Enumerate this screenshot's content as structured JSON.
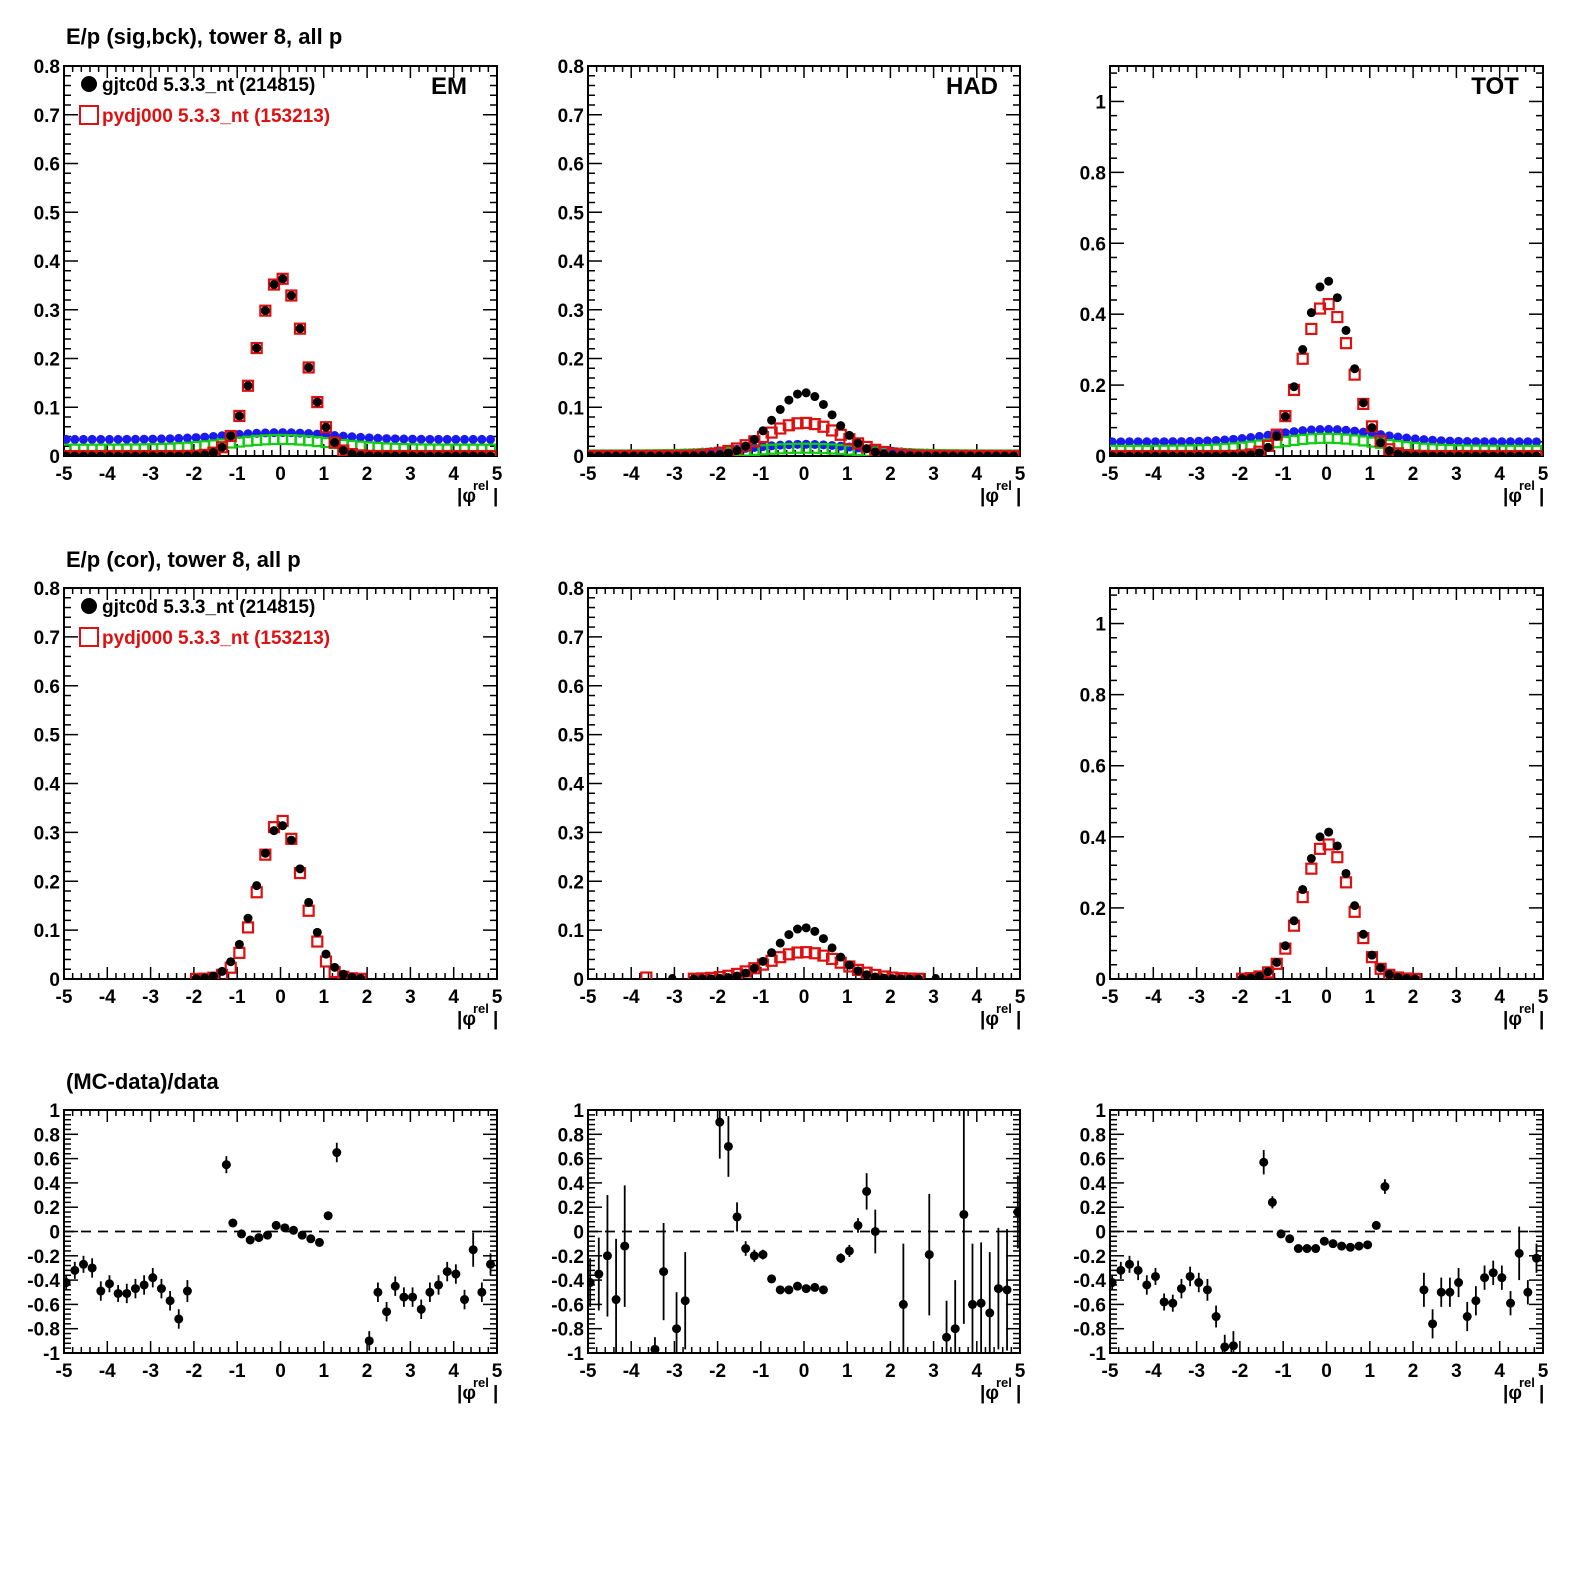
{
  "colors": {
    "data": "#000000",
    "mc": "#dd1111",
    "blue": "#1a1aee",
    "green": "#11cc11",
    "axis": "#000000"
  },
  "rows": [
    {
      "title": "E/p (sig,bck), tower 8, all p",
      "legend": {
        "data": "gjtc0d 5.3.3_nt (214815)",
        "mc": "pydj000 5.3.3_nt (153213)"
      }
    },
    {
      "title": "E/p (cor), tower 8, all p",
      "legend": {
        "data": "gjtc0d 5.3.3_nt (214815)",
        "mc": "pydj000 5.3.3_nt (153213)"
      }
    },
    {
      "title": "(MC-data)/data"
    }
  ],
  "xaxis": {
    "label_main": "|φ",
    "label_sup": "rel",
    "label_end": "|",
    "ticks": [
      "-5",
      "-4",
      "-3",
      "-2",
      "-1",
      "0",
      "1",
      "2",
      "3",
      "4",
      "5"
    ]
  },
  "chart_data": [
    {
      "type": "scatter",
      "row": 0,
      "col": 0,
      "panel_label": "EM",
      "xlim": [
        -5,
        5
      ],
      "ylim": [
        0,
        0.8
      ],
      "yticks": [
        "0",
        "0.1",
        "0.2",
        "0.3",
        "0.4",
        "0.5",
        "0.6",
        "0.7",
        "0.8"
      ],
      "profile": {
        "kind": "gauss",
        "data_peak": 0.365,
        "data_sigma": 0.55,
        "mc_peak": 0.365,
        "mc_sigma": 0.55,
        "bg_blue": 0.034,
        "bg_blue_bump": 0.014,
        "bg_green": 0.014,
        "bg_green_bump": 0.02,
        "bg_sigma": 1.2,
        "xmin": -5,
        "xmax": 5
      }
    },
    {
      "type": "scatter",
      "row": 0,
      "col": 1,
      "panel_label": "HAD",
      "xlim": [
        -5,
        5
      ],
      "ylim": [
        0,
        0.8
      ],
      "yticks": [
        "0",
        "0.1",
        "0.2",
        "0.3",
        "0.4",
        "0.5",
        "0.6",
        "0.7",
        "0.8"
      ],
      "profile": {
        "kind": "gauss",
        "data_peak": 0.13,
        "data_sigma": 0.7,
        "mc_peak": 0.068,
        "mc_sigma": 0.9,
        "bg_blue": 0.004,
        "bg_blue_bump": 0.02,
        "bg_green": 0.002,
        "bg_green_bump": 0.014,
        "bg_sigma": 1.3,
        "xmin": -5,
        "xmax": 5
      }
    },
    {
      "type": "scatter",
      "row": 0,
      "col": 2,
      "panel_label": "TOT",
      "xlim": [
        -5,
        5
      ],
      "ylim": [
        0,
        1.1
      ],
      "yticks": [
        "0",
        "0.2",
        "0.4",
        "0.6",
        "0.8",
        "1"
      ],
      "ytick_values": [
        0,
        0.2,
        0.4,
        0.6,
        0.8,
        1
      ],
      "profile": {
        "kind": "gauss",
        "data_peak": 0.495,
        "data_sigma": 0.55,
        "mc_peak": 0.43,
        "mc_sigma": 0.58,
        "bg_blue": 0.04,
        "bg_blue_bump": 0.035,
        "bg_green": 0.016,
        "bg_green_bump": 0.034,
        "bg_sigma": 1.2,
        "xmin": -5,
        "xmax": 5
      }
    },
    {
      "type": "scatter",
      "row": 1,
      "col": 0,
      "panel_label": "",
      "xlim": [
        -5,
        5
      ],
      "ylim": [
        0,
        0.8
      ],
      "yticks": [
        "0",
        "0.1",
        "0.2",
        "0.3",
        "0.4",
        "0.5",
        "0.6",
        "0.7",
        "0.8"
      ],
      "profile": {
        "kind": "gauss",
        "data_peak": 0.315,
        "data_sigma": 0.55,
        "mc_peak": 0.325,
        "mc_sigma": 0.5,
        "xmin": -1.95,
        "xmax": 1.95
      }
    },
    {
      "type": "scatter",
      "row": 1,
      "col": 1,
      "panel_label": "",
      "xlim": [
        -5,
        5
      ],
      "ylim": [
        0,
        0.8
      ],
      "yticks": [
        "0",
        "0.1",
        "0.2",
        "0.3",
        "0.4",
        "0.5",
        "0.6",
        "0.7",
        "0.8"
      ],
      "profile": {
        "kind": "gauss",
        "data_peak": 0.105,
        "data_sigma": 0.65,
        "mc_peak": 0.055,
        "mc_sigma": 0.85,
        "xmin": -2.55,
        "xmax": 2.75,
        "extra_mc": [
          -3.65
        ],
        "extra_data": [
          -3.05,
          3.05
        ]
      }
    },
    {
      "type": "scatter",
      "row": 1,
      "col": 2,
      "panel_label": "",
      "xlim": [
        -5,
        5
      ],
      "ylim": [
        0,
        1.1
      ],
      "yticks": [
        "0",
        "0.2",
        "0.4",
        "0.6",
        "0.8",
        "1"
      ],
      "ytick_values": [
        0,
        0.2,
        0.4,
        0.6,
        0.8,
        1
      ],
      "profile": {
        "kind": "gauss",
        "data_peak": 0.415,
        "data_sigma": 0.55,
        "mc_peak": 0.38,
        "mc_sigma": 0.55,
        "xmin": -1.95,
        "xmax": 2.05
      }
    },
    {
      "type": "scatter",
      "row": 2,
      "col": 0,
      "panel_label": "",
      "xlim": [
        -5,
        5
      ],
      "ylim": [
        -1,
        1
      ],
      "ref_line": 0,
      "yticks": [
        "-1",
        "-0.8",
        "-0.6",
        "-0.4",
        "-0.2",
        "0",
        "0.2",
        "0.4",
        "0.6",
        "0.8",
        "1"
      ],
      "points": [
        [
          -4.95,
          -0.42,
          0.06
        ],
        [
          -4.75,
          -0.32,
          0.07
        ],
        [
          -4.55,
          -0.27,
          0.07
        ],
        [
          -4.35,
          -0.3,
          0.08
        ],
        [
          -4.15,
          -0.49,
          0.08
        ],
        [
          -3.95,
          -0.43,
          0.07
        ],
        [
          -3.75,
          -0.51,
          0.07
        ],
        [
          -3.55,
          -0.51,
          0.08
        ],
        [
          -3.35,
          -0.47,
          0.08
        ],
        [
          -3.15,
          -0.44,
          0.08
        ],
        [
          -2.95,
          -0.38,
          0.08
        ],
        [
          -2.75,
          -0.47,
          0.08
        ],
        [
          -2.55,
          -0.57,
          0.08
        ],
        [
          -2.35,
          -0.72,
          0.08
        ],
        [
          -2.15,
          -0.49,
          0.09
        ],
        [
          -1.25,
          0.55,
          0.07
        ],
        [
          -1.1,
          0.07,
          0.02
        ],
        [
          -0.9,
          -0.02,
          0.02
        ],
        [
          -0.7,
          -0.07,
          0.02
        ],
        [
          -0.5,
          -0.05,
          0.02
        ],
        [
          -0.3,
          -0.03,
          0.02
        ],
        [
          -0.1,
          0.05,
          0.02
        ],
        [
          0.1,
          0.03,
          0.02
        ],
        [
          0.3,
          0.01,
          0.02
        ],
        [
          0.5,
          -0.03,
          0.02
        ],
        [
          0.7,
          -0.06,
          0.02
        ],
        [
          0.9,
          -0.09,
          0.02
        ],
        [
          1.1,
          0.13,
          0.02
        ],
        [
          1.3,
          0.65,
          0.08
        ],
        [
          2.05,
          -0.9,
          0.08
        ],
        [
          2.25,
          -0.5,
          0.08
        ],
        [
          2.45,
          -0.66,
          0.08
        ],
        [
          2.65,
          -0.45,
          0.08
        ],
        [
          2.85,
          -0.54,
          0.08
        ],
        [
          3.05,
          -0.54,
          0.08
        ],
        [
          3.25,
          -0.64,
          0.08
        ],
        [
          3.45,
          -0.5,
          0.08
        ],
        [
          3.65,
          -0.44,
          0.08
        ],
        [
          3.85,
          -0.33,
          0.08
        ],
        [
          4.05,
          -0.35,
          0.08
        ],
        [
          4.25,
          -0.56,
          0.08
        ],
        [
          4.45,
          -0.15,
          0.14
        ],
        [
          4.65,
          -0.5,
          0.08
        ],
        [
          4.85,
          -0.27,
          0.09
        ]
      ]
    },
    {
      "type": "scatter",
      "row": 2,
      "col": 1,
      "panel_label": "",
      "xlim": [
        -5,
        5
      ],
      "ylim": [
        -1,
        1
      ],
      "ref_line": 0,
      "yticks": [
        "-1",
        "-0.8",
        "-0.6",
        "-0.4",
        "-0.2",
        "0",
        "0.2",
        "0.4",
        "0.6",
        "0.8",
        "1"
      ],
      "points": [
        [
          -4.95,
          -0.42,
          0.2
        ],
        [
          -4.75,
          -0.35,
          0.3
        ],
        [
          -4.55,
          -0.2,
          0.5
        ],
        [
          -4.35,
          -0.56,
          0.5
        ],
        [
          -4.15,
          -0.12,
          0.5
        ],
        [
          -3.45,
          -0.97,
          0.1
        ],
        [
          -3.25,
          -0.33,
          0.4
        ],
        [
          -2.95,
          -0.8,
          0.3
        ],
        [
          -2.75,
          -0.57,
          0.4
        ],
        [
          -1.95,
          0.9,
          0.3
        ],
        [
          -1.75,
          0.7,
          0.25
        ],
        [
          -1.55,
          0.12,
          0.12
        ],
        [
          -1.35,
          -0.14,
          0.06
        ],
        [
          -1.15,
          -0.2,
          0.05
        ],
        [
          -0.95,
          -0.19,
          0.04
        ],
        [
          -0.75,
          -0.39,
          0.03
        ],
        [
          -0.55,
          -0.48,
          0.03
        ],
        [
          -0.35,
          -0.48,
          0.03
        ],
        [
          -0.15,
          -0.45,
          0.03
        ],
        [
          0.05,
          -0.47,
          0.03
        ],
        [
          0.25,
          -0.46,
          0.03
        ],
        [
          0.45,
          -0.48,
          0.03
        ],
        [
          0.85,
          -0.22,
          0.04
        ],
        [
          1.05,
          -0.16,
          0.05
        ],
        [
          1.25,
          0.05,
          0.06
        ],
        [
          1.45,
          0.33,
          0.15
        ],
        [
          1.65,
          0.0,
          0.18
        ],
        [
          2.3,
          -0.6,
          0.5
        ],
        [
          2.9,
          -0.19,
          0.5
        ],
        [
          3.3,
          -0.87,
          0.3
        ],
        [
          3.5,
          -0.8,
          0.4
        ],
        [
          3.7,
          0.14,
          0.9
        ],
        [
          3.9,
          -0.6,
          0.5
        ],
        [
          4.1,
          -0.59,
          0.5
        ],
        [
          4.3,
          -0.67,
          0.5
        ],
        [
          4.5,
          -0.47,
          0.5
        ],
        [
          4.7,
          -0.48,
          0.5
        ],
        [
          4.95,
          0.16,
          0.3
        ]
      ]
    },
    {
      "type": "scatter",
      "row": 2,
      "col": 2,
      "panel_label": "",
      "xlim": [
        -5,
        5
      ],
      "ylim": [
        -1,
        1
      ],
      "ref_line": 0,
      "yticks": [
        "-1",
        "-0.8",
        "-0.6",
        "-0.4",
        "-0.2",
        "0",
        "0.2",
        "0.4",
        "0.6",
        "0.8",
        "1"
      ],
      "points": [
        [
          -4.95,
          -0.42,
          0.06
        ],
        [
          -4.75,
          -0.32,
          0.07
        ],
        [
          -4.55,
          -0.27,
          0.07
        ],
        [
          -4.35,
          -0.32,
          0.08
        ],
        [
          -4.15,
          -0.44,
          0.08
        ],
        [
          -3.95,
          -0.37,
          0.07
        ],
        [
          -3.75,
          -0.58,
          0.07
        ],
        [
          -3.55,
          -0.59,
          0.07
        ],
        [
          -3.35,
          -0.47,
          0.08
        ],
        [
          -3.15,
          -0.37,
          0.08
        ],
        [
          -2.95,
          -0.42,
          0.08
        ],
        [
          -2.75,
          -0.48,
          0.09
        ],
        [
          -2.55,
          -0.7,
          0.09
        ],
        [
          -2.35,
          -0.95,
          0.1
        ],
        [
          -2.15,
          -0.94,
          0.12
        ],
        [
          -1.45,
          0.57,
          0.1
        ],
        [
          -1.25,
          0.24,
          0.05
        ],
        [
          -1.05,
          -0.02,
          0.02
        ],
        [
          -0.85,
          -0.06,
          0.02
        ],
        [
          -0.65,
          -0.14,
          0.02
        ],
        [
          -0.45,
          -0.14,
          0.02
        ],
        [
          -0.25,
          -0.14,
          0.02
        ],
        [
          -0.05,
          -0.08,
          0.02
        ],
        [
          0.15,
          -0.1,
          0.02
        ],
        [
          0.35,
          -0.12,
          0.02
        ],
        [
          0.55,
          -0.13,
          0.02
        ],
        [
          0.75,
          -0.12,
          0.02
        ],
        [
          0.95,
          -0.11,
          0.02
        ],
        [
          1.15,
          0.05,
          0.02
        ],
        [
          1.35,
          0.37,
          0.06
        ],
        [
          2.25,
          -0.48,
          0.14
        ],
        [
          2.45,
          -0.76,
          0.12
        ],
        [
          2.65,
          -0.5,
          0.12
        ],
        [
          2.85,
          -0.5,
          0.12
        ],
        [
          3.05,
          -0.42,
          0.12
        ],
        [
          3.25,
          -0.7,
          0.12
        ],
        [
          3.45,
          -0.57,
          0.12
        ],
        [
          3.65,
          -0.38,
          0.1
        ],
        [
          3.85,
          -0.34,
          0.1
        ],
        [
          4.05,
          -0.38,
          0.1
        ],
        [
          4.25,
          -0.59,
          0.1
        ],
        [
          4.45,
          -0.18,
          0.22
        ],
        [
          4.65,
          -0.5,
          0.1
        ],
        [
          4.85,
          -0.22,
          0.12
        ]
      ]
    }
  ]
}
